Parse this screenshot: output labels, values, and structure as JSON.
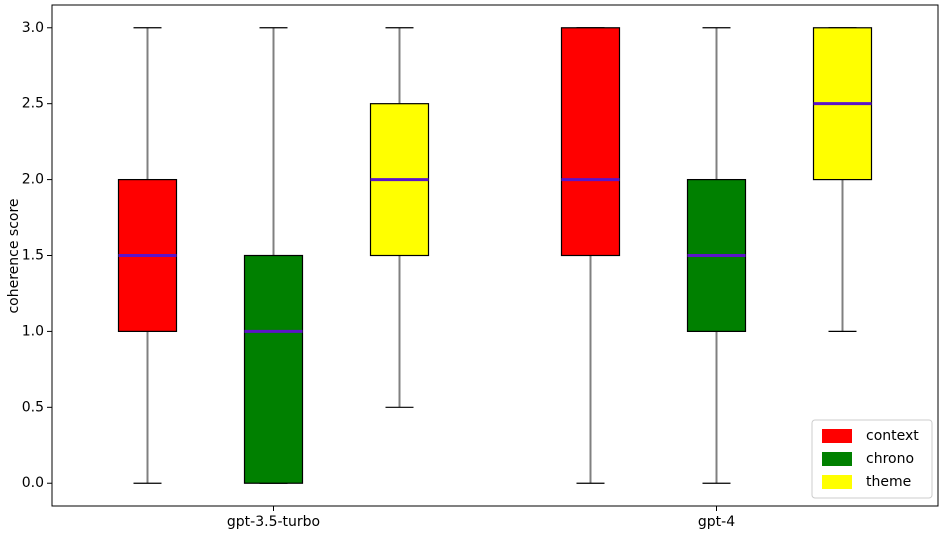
{
  "chart_data": {
    "type": "box",
    "y_label": "coherence score",
    "categories": [
      "gpt-3.5-turbo",
      "gpt-4"
    ],
    "series": [
      {
        "name": "context",
        "color": "#ff0000",
        "values": [
          {
            "low": 0,
            "q1": 1.0,
            "median": 1.5,
            "q3": 2.0,
            "high": 3.0
          },
          {
            "low": 0,
            "q1": 1.5,
            "median": 2.0,
            "q3": 3.0,
            "high": 3.0
          }
        ]
      },
      {
        "name": "chrono",
        "color": "#008000",
        "values": [
          {
            "low": 0,
            "q1": 0,
            "median": 1.0,
            "q3": 1.5,
            "high": 3.0
          },
          {
            "low": 0,
            "q1": 1.0,
            "median": 1.5,
            "q3": 2.0,
            "high": 3.0
          }
        ]
      },
      {
        "name": "theme",
        "color": "#ffff00",
        "values": [
          {
            "low": 0.5,
            "q1": 1.5,
            "median": 2.0,
            "q3": 2.5,
            "high": 3.0
          },
          {
            "low": 1.0,
            "q1": 2.0,
            "median": 2.5,
            "q3": 3.0,
            "high": 3.0
          }
        ]
      }
    ],
    "median_color": "#5b14c8",
    "whisker_color": "#808080",
    "ylim": [
      -0.15,
      3.15
    ],
    "yticks": [
      {
        "value": 0,
        "label": "0.0"
      },
      {
        "value": 0.5,
        "label": "0.5"
      },
      {
        "value": 1,
        "label": "1.0"
      },
      {
        "value": 1.5,
        "label": "1.5"
      },
      {
        "value": 2,
        "label": "2.0"
      },
      {
        "value": 2.5,
        "label": "2.5"
      },
      {
        "value": 3,
        "label": "3.0"
      }
    ],
    "legend": "lower right",
    "grid": false
  }
}
